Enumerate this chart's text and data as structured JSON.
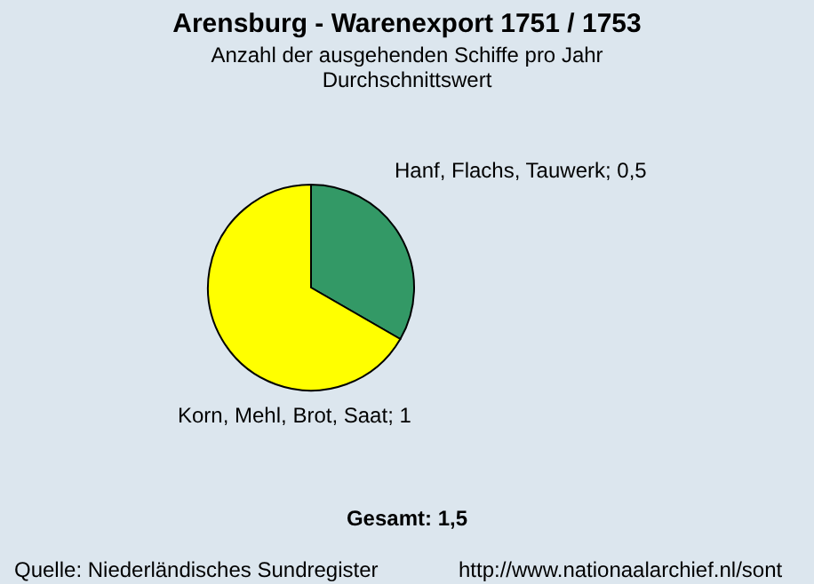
{
  "chart_data": {
    "type": "pie",
    "title": "Arensburg - Warenexport 1751 / 1753",
    "subtitle": "Anzahl der ausgehenden Schiffe pro Jahr\nDurchschnittswert",
    "categories": [
      "Hanf, Flachs, Tauwerk",
      "Korn, Mehl, Brot, Saat"
    ],
    "values": [
      0.5,
      1
    ],
    "value_labels": [
      "; 0,5",
      "; 1"
    ],
    "colors": [
      "#339966",
      "#ffff00"
    ],
    "annotations": [
      "Gesamt: 1,5",
      "Quelle:   Niederländisches Sundregister",
      "http://www.nationaalarchief.nl/sont"
    ]
  }
}
